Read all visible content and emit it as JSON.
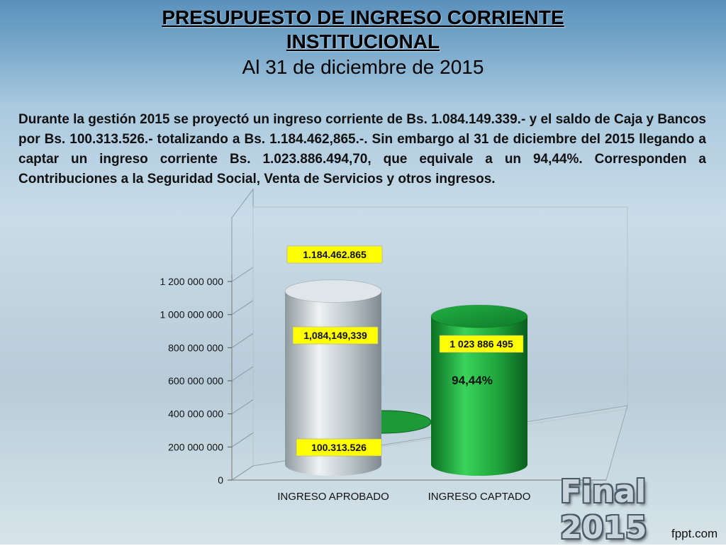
{
  "header": {
    "title": "PRESUPUESTO DE INGRESO CORRIENTE INSTITUCIONAL",
    "subtitle": "Al 31 de diciembre de 2015"
  },
  "paragraph": "Durante la gestión 2015 se proyectó un ingreso corriente de Bs. 1.084.149.339.- y el saldo de Caja y Bancos por Bs. 100.313.526.- totalizando a Bs. 1.184.462,865.-. Sin embargo al 31 de diciembre del 2015 llegando a captar un ingreso corriente Bs. 1.023.886.494,70, que equivale a un 94,44%. Corresponden a Contribuciones a la Seguridad Social, Venta de Servicios y otros ingresos.",
  "chart_data": {
    "type": "bar",
    "categories": [
      "INGRESO APROBADO",
      "INGRESO CAPTADO"
    ],
    "series": [
      {
        "values": [
          1084149339,
          1023886495
        ]
      },
      {
        "values": [
          100313526,
          0
        ]
      }
    ],
    "totals": [
      1184462865,
      1023886495
    ],
    "data_labels": {
      "total": "1.184.462.865",
      "aprobado_main": "1,084,149,339",
      "aprobado_caja": "100.313.526",
      "captado_main": "1 023 886 495",
      "percent": "94,44%"
    },
    "yticks": [
      0,
      200000000,
      400000000,
      600000000,
      800000000,
      1000000000,
      1200000000
    ],
    "ytick_labels": [
      "0",
      "200 000 000",
      "400 000 000",
      "600 000 000",
      "800 000 000",
      "1 000 000 000",
      "1 200 000 000"
    ],
    "ylim": [
      0,
      1200000000
    ],
    "colors": {
      "aprobado": "#b9c4c9",
      "captado": "#1ea23a",
      "label_bg": "#ffff00"
    }
  },
  "watermark": "Final 2015",
  "footer": "fppt.com"
}
